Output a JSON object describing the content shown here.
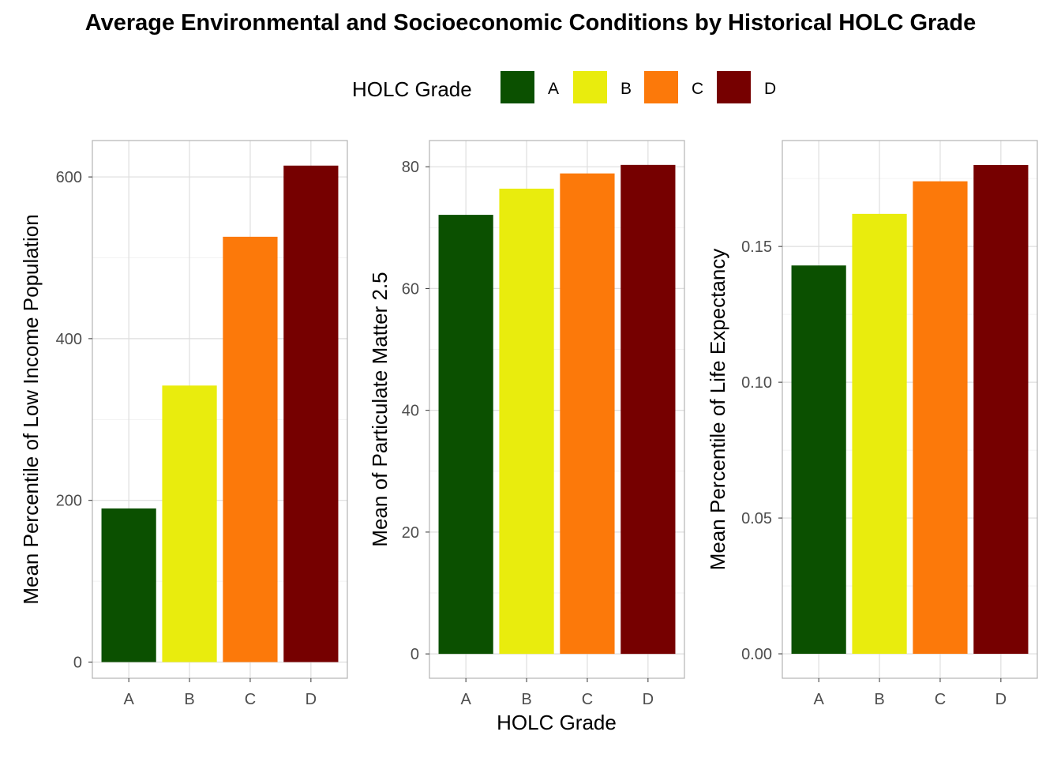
{
  "title": "Average Environmental and Socioeconomic Conditions by Historical HOLC Grade",
  "legend": {
    "title": "HOLC Grade",
    "items": [
      {
        "label": "A",
        "color": "#0b5000"
      },
      {
        "label": "B",
        "color": "#e9ec0d"
      },
      {
        "label": "C",
        "color": "#fc790a"
      },
      {
        "label": "D",
        "color": "#760000"
      }
    ]
  },
  "shared_xlabel": "HOLC Grade",
  "chart_data": [
    {
      "type": "bar",
      "categories": [
        "A",
        "B",
        "C",
        "D"
      ],
      "values": [
        190,
        342,
        526,
        614
      ],
      "ylabel": "Mean Percentile of Low Income Population",
      "ylim": [
        -20,
        645
      ],
      "yticks": [
        0,
        200,
        400,
        600
      ],
      "ytick_labels": [
        "0",
        "200",
        "400",
        "600"
      ],
      "grid": true
    },
    {
      "type": "bar",
      "categories": [
        "A",
        "B",
        "C",
        "D"
      ],
      "values": [
        72.1,
        76.4,
        78.9,
        80.3
      ],
      "ylabel": "Mean of Particulate Matter 2.5",
      "ylim": [
        -4,
        84.3
      ],
      "yticks": [
        0,
        20,
        40,
        60,
        80
      ],
      "ytick_labels": [
        "0",
        "20",
        "40",
        "60",
        "80"
      ],
      "grid": true
    },
    {
      "type": "bar",
      "categories": [
        "A",
        "B",
        "C",
        "D"
      ],
      "values": [
        0.143,
        0.162,
        0.174,
        0.18
      ],
      "ylabel": "Mean Percentile of Life Expectancy",
      "ylim": [
        -0.009,
        0.189
      ],
      "yticks": [
        0,
        0.05,
        0.1,
        0.15
      ],
      "ytick_labels": [
        "0.00",
        "0.05",
        "0.10",
        "0.15"
      ],
      "grid": true
    }
  ]
}
